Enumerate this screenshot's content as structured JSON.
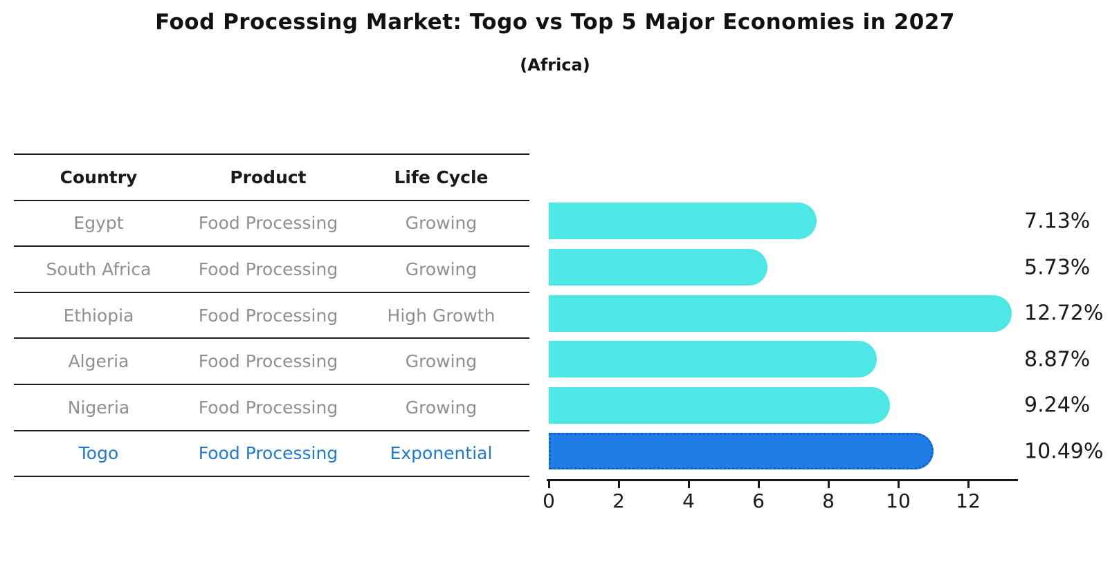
{
  "header": {
    "title": "Food Processing Market: Togo vs Top 5 Major Economies in 2027",
    "subtitle": "(Africa)"
  },
  "table": {
    "columns": [
      "Country",
      "Product",
      "Life Cycle"
    ],
    "rows": [
      {
        "country": "Egypt",
        "product": "Food Processing",
        "life_cycle": "Growing",
        "highlighted": false
      },
      {
        "country": "South Africa",
        "product": "Food Processing",
        "life_cycle": "Growing",
        "highlighted": false
      },
      {
        "country": "Ethiopia",
        "product": "Food Processing",
        "life_cycle": "High Growth",
        "highlighted": false
      },
      {
        "country": "Algeria",
        "product": "Food Processing",
        "life_cycle": "Growing",
        "highlighted": false
      },
      {
        "country": "Nigeria",
        "product": "Food Processing",
        "life_cycle": "Growing",
        "highlighted": false
      },
      {
        "country": "Togo",
        "product": "Food Processing",
        "life_cycle": "Exponential",
        "highlighted": true
      }
    ]
  },
  "chart_data": {
    "type": "bar",
    "orientation": "horizontal",
    "title": "Food Processing Market: Togo vs Top 5 Major Economies in 2027",
    "subtitle": "(Africa)",
    "categories": [
      "Egypt",
      "South Africa",
      "Ethiopia",
      "Algeria",
      "Nigeria",
      "Togo"
    ],
    "values": [
      7.13,
      5.73,
      12.72,
      8.87,
      9.24,
      10.49
    ],
    "value_labels": [
      "7.13%",
      "5.73%",
      "12.72%",
      "8.87%",
      "9.24%",
      "10.49%"
    ],
    "highlight_index": 5,
    "xticks": [
      0,
      2,
      4,
      6,
      8,
      10,
      12
    ],
    "xlim": [
      0,
      13.4
    ],
    "grid": false,
    "legend": "none"
  },
  "colors": {
    "bar": "#4de8e6",
    "highlight_bar": "#207ce6",
    "highlight_border": "#1060c8",
    "axis": "#1a1a1a",
    "value_text": "#1a1a1a",
    "tick_text": "#1a1a1a",
    "header_text": "#1a1a1a",
    "row_text": "#8f8f8f",
    "highlight_row_text": "#2178d4",
    "title_text": "#111111"
  }
}
